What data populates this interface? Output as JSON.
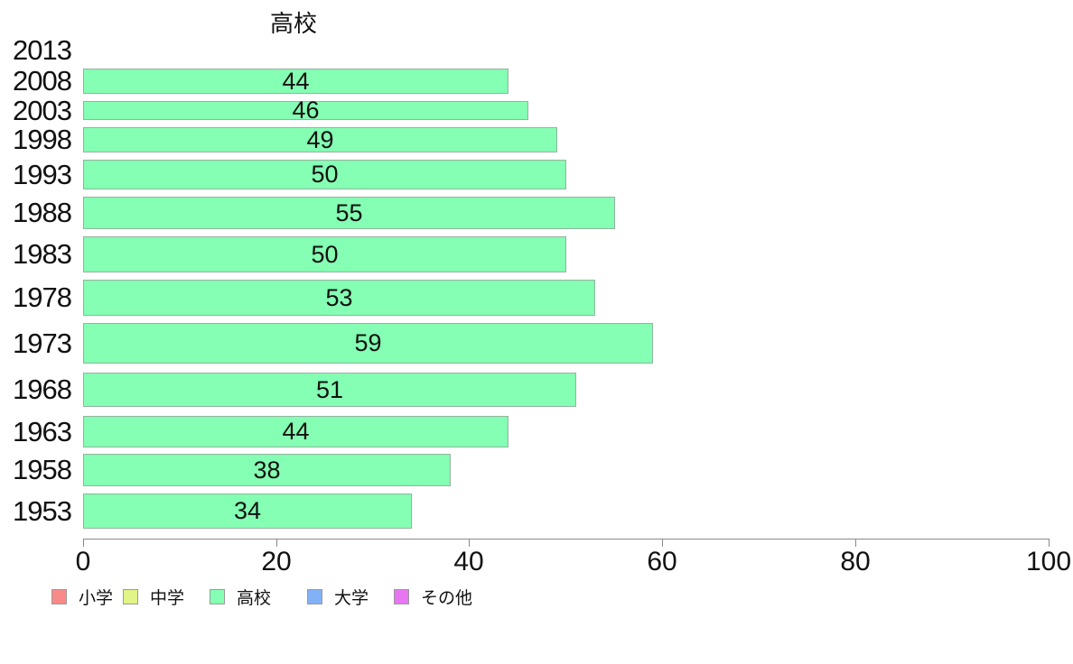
{
  "chart_data": {
    "type": "bar",
    "orientation": "horizontal",
    "title": "高校",
    "xlabel": "",
    "ylabel": "",
    "xlim": [
      0,
      100
    ],
    "x_ticks": [
      0,
      20,
      40,
      60,
      80,
      100
    ],
    "grid": false,
    "bar_color": "#84ffb3",
    "bar_border_color": "#94b3a0",
    "categories": [
      "2013",
      "2008",
      "2003",
      "1998",
      "1993",
      "1988",
      "1983",
      "1978",
      "1973",
      "1968",
      "1963",
      "1958",
      "1953"
    ],
    "values": [
      null,
      44,
      46,
      49,
      50,
      55,
      50,
      53,
      59,
      51,
      44,
      38,
      34
    ],
    "rows": [
      {
        "year": "2013",
        "value": null,
        "top": 44,
        "thickness": 24
      },
      {
        "year": "2008",
        "value": 44,
        "top": 76,
        "thickness": 28
      },
      {
        "year": "2003",
        "value": 46,
        "top": 112,
        "thickness": 21
      },
      {
        "year": "1998",
        "value": 49,
        "top": 141,
        "thickness": 28
      },
      {
        "year": "1993",
        "value": 50,
        "top": 177,
        "thickness": 33
      },
      {
        "year": "1988",
        "value": 55,
        "top": 218,
        "thickness": 36
      },
      {
        "year": "1983",
        "value": 50,
        "top": 262,
        "thickness": 40
      },
      {
        "year": "1978",
        "value": 53,
        "top": 310,
        "thickness": 40
      },
      {
        "year": "1973",
        "value": 59,
        "top": 358,
        "thickness": 45
      },
      {
        "year": "1968",
        "value": 51,
        "top": 413,
        "thickness": 38
      },
      {
        "year": "1963",
        "value": 44,
        "top": 461,
        "thickness": 35
      },
      {
        "year": "1958",
        "value": 38,
        "top": 503,
        "thickness": 36
      },
      {
        "year": "1953",
        "value": 34,
        "top": 547,
        "thickness": 39
      }
    ],
    "legend_position": "bottom",
    "legend": [
      {
        "label": "小学",
        "color": "#f98a8a",
        "left": 57
      },
      {
        "label": "中学",
        "color": "#e0f487",
        "left": 136
      },
      {
        "label": "高校",
        "color": "#84ffb3",
        "left": 232
      },
      {
        "label": "大学",
        "color": "#82b1f7",
        "left": 340
      },
      {
        "label": "その他",
        "color": "#e876f2",
        "left": 436
      }
    ]
  },
  "axis_color": "#8a8a8a"
}
